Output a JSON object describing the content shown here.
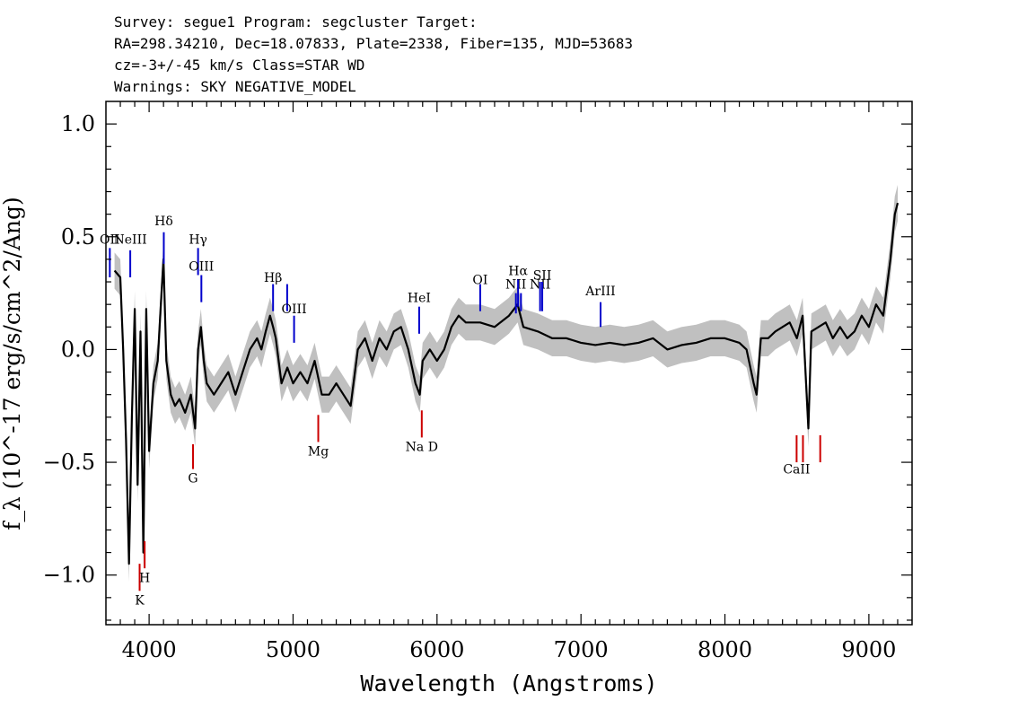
{
  "header": {
    "line1": "Survey: segue1 Program: segcluster Target:",
    "line2": "RA=298.34210, Dec=18.07833, Plate=2338, Fiber=135, MJD=53683",
    "line3": "cz=-3+/-45 km/s Class=STAR WD",
    "line4": "Warnings: SKY NEGATIVE_MODEL"
  },
  "chart_data": {
    "type": "line",
    "xlabel": "Wavelength (Angstroms)",
    "ylabel": "f_λ (10^-17 erg/s/cm^2/Ang)",
    "xlim": [
      3700,
      9300
    ],
    "ylim": [
      -1.22,
      1.1
    ],
    "x_ticks": [
      4000,
      5000,
      6000,
      7000,
      8000,
      9000
    ],
    "y_ticks": [
      {
        "value": 1.0,
        "label": "1.0"
      },
      {
        "value": 0.5,
        "label": "0.5"
      },
      {
        "value": 0.0,
        "label": "0.0"
      },
      {
        "value": -0.5,
        "label": "−0.5"
      },
      {
        "value": -1.0,
        "label": "−1.0"
      }
    ],
    "grid": false,
    "colors": {
      "flux": "#000000",
      "error_band": "#c0c0c0",
      "emission": "#0000cc",
      "absorption": "#cc0000"
    },
    "series": [
      {
        "x": [
          3760,
          3800,
          3820,
          3840,
          3860,
          3880,
          3900,
          3920,
          3940,
          3960,
          3980,
          4000,
          4030,
          4060,
          4080,
          4100,
          4120,
          4150,
          4180,
          4210,
          4250,
          4290,
          4320,
          4340,
          4360,
          4380,
          4400,
          4450,
          4500,
          4550,
          4600,
          4650,
          4700,
          4750,
          4780,
          4810,
          4840,
          4861,
          4880,
          4920,
          4960,
          5000,
          5050,
          5100,
          5150,
          5200,
          5250,
          5300,
          5350,
          5400,
          5450,
          5500,
          5550,
          5600,
          5650,
          5700,
          5750,
          5800,
          5850,
          5880,
          5900,
          5950,
          6000,
          6050,
          6100,
          6150,
          6200,
          6300,
          6400,
          6500,
          6560,
          6600,
          6700,
          6800,
          6900,
          7000,
          7100,
          7200,
          7300,
          7400,
          7500,
          7600,
          7700,
          7800,
          7900,
          8000,
          8100,
          8150,
          8200,
          8220,
          8250,
          8300,
          8350,
          8400,
          8450,
          8500,
          8540,
          8560,
          8580,
          8600,
          8650,
          8700,
          8750,
          8800,
          8850,
          8900,
          8950,
          9000,
          9050,
          9100,
          9150,
          9180,
          9200
        ],
        "y": [
          0.35,
          0.32,
          0.0,
          -0.4,
          -0.95,
          -0.3,
          0.18,
          -0.6,
          0.08,
          -0.9,
          0.18,
          -0.45,
          -0.15,
          -0.05,
          0.18,
          0.4,
          -0.05,
          -0.2,
          -0.25,
          -0.22,
          -0.28,
          -0.2,
          -0.35,
          0.0,
          0.1,
          -0.05,
          -0.15,
          -0.2,
          -0.15,
          -0.1,
          -0.2,
          -0.1,
          0.0,
          0.05,
          0.0,
          0.08,
          0.15,
          0.1,
          0.05,
          -0.15,
          -0.08,
          -0.15,
          -0.1,
          -0.15,
          -0.05,
          -0.2,
          -0.2,
          -0.15,
          -0.2,
          -0.25,
          0.0,
          0.05,
          -0.05,
          0.05,
          0.0,
          0.08,
          0.1,
          0.0,
          -0.15,
          -0.2,
          -0.05,
          0.0,
          -0.05,
          0.0,
          0.1,
          0.15,
          0.12,
          0.12,
          0.1,
          0.15,
          0.2,
          0.1,
          0.08,
          0.05,
          0.05,
          0.03,
          0.02,
          0.03,
          0.02,
          0.03,
          0.05,
          0.0,
          0.02,
          0.03,
          0.05,
          0.05,
          0.03,
          0.0,
          -0.15,
          -0.2,
          0.05,
          0.05,
          0.08,
          0.1,
          0.12,
          0.05,
          0.15,
          -0.1,
          -0.35,
          0.08,
          0.1,
          0.12,
          0.05,
          0.1,
          0.05,
          0.08,
          0.15,
          0.1,
          0.2,
          0.15,
          0.4,
          0.6,
          0.65
        ]
      }
    ],
    "error_band": 0.08,
    "emission_lines": [
      {
        "label": "OII",
        "wave": 3727,
        "y_text": 0.47,
        "y1": 0.32,
        "y2": 0.45
      },
      {
        "label": "NeIII",
        "wave": 3869,
        "y_text": 0.47,
        "y1": 0.32,
        "y2": 0.44
      },
      {
        "label": "Hδ",
        "wave": 4102,
        "y_text": 0.55,
        "y1": 0.38,
        "y2": 0.52
      },
      {
        "label": "Hγ",
        "wave": 4340,
        "y_text": 0.47,
        "y1": 0.33,
        "y2": 0.45
      },
      {
        "label": "OIII",
        "wave": 4363,
        "y_text": 0.35,
        "y1": 0.21,
        "y2": 0.33
      },
      {
        "label": "Hβ",
        "wave": 4861,
        "y_text": 0.3,
        "y1": 0.17,
        "y2": 0.29
      },
      {
        "label": "OIII",
        "wave": 4959,
        "y_text": -9,
        "y1": 0.17,
        "y2": 0.29
      },
      {
        "label": "OIII",
        "wave": 5007,
        "y_text": 0.16,
        "y1": 0.03,
        "y2": 0.15
      },
      {
        "label": "HeI",
        "wave": 5876,
        "y_text": 0.21,
        "y1": 0.07,
        "y2": 0.19
      },
      {
        "label": "OI",
        "wave": 6300,
        "y_text": 0.29,
        "y1": 0.17,
        "y2": 0.29
      },
      {
        "label": "NII",
        "wave": 6548,
        "y_text": 0.27,
        "y1": 0.16,
        "y2": 0.25
      },
      {
        "label": "Hα",
        "wave": 6563,
        "y_text": 0.33,
        "y1": 0.19,
        "y2": 0.31
      },
      {
        "label": "NII",
        "wave": 6583,
        "y_text": -9,
        "y1": 0.17,
        "y2": 0.25
      },
      {
        "label": "NII",
        "wave": 6716,
        "y_text": 0.27,
        "y1": 0.17,
        "y2": 0.3
      },
      {
        "label": "SII",
        "wave": 6731,
        "y_text": 0.31,
        "y1": 0.17,
        "y2": 0.3
      },
      {
        "label": "ArIII",
        "wave": 7136,
        "y_text": 0.24,
        "y1": 0.1,
        "y2": 0.21
      }
    ],
    "absorption_lines": [
      {
        "label": "K",
        "wave": 3934,
        "y_text": -1.13,
        "y1": -1.07,
        "y2": -0.95
      },
      {
        "label": "H",
        "wave": 3969,
        "y_text": -1.03,
        "y1": -0.97,
        "y2": -0.85
      },
      {
        "label": "G",
        "wave": 4305,
        "y_text": -0.59,
        "y1": -0.53,
        "y2": -0.42
      },
      {
        "label": "Mg",
        "wave": 5175,
        "y_text": -0.47,
        "y1": -0.41,
        "y2": -0.29
      },
      {
        "label": "Na D",
        "wave": 5894,
        "y_text": -0.45,
        "y1": -0.39,
        "y2": -0.27
      },
      {
        "label": "CaII",
        "wave": 8498,
        "y_text": -0.55,
        "y1": -0.5,
        "y2": -0.38
      },
      {
        "label": "",
        "wave": 8542,
        "y_text": -9,
        "y1": -0.5,
        "y2": -0.38
      },
      {
        "label": "",
        "wave": 8662,
        "y_text": -9,
        "y1": -0.5,
        "y2": -0.38
      }
    ]
  }
}
